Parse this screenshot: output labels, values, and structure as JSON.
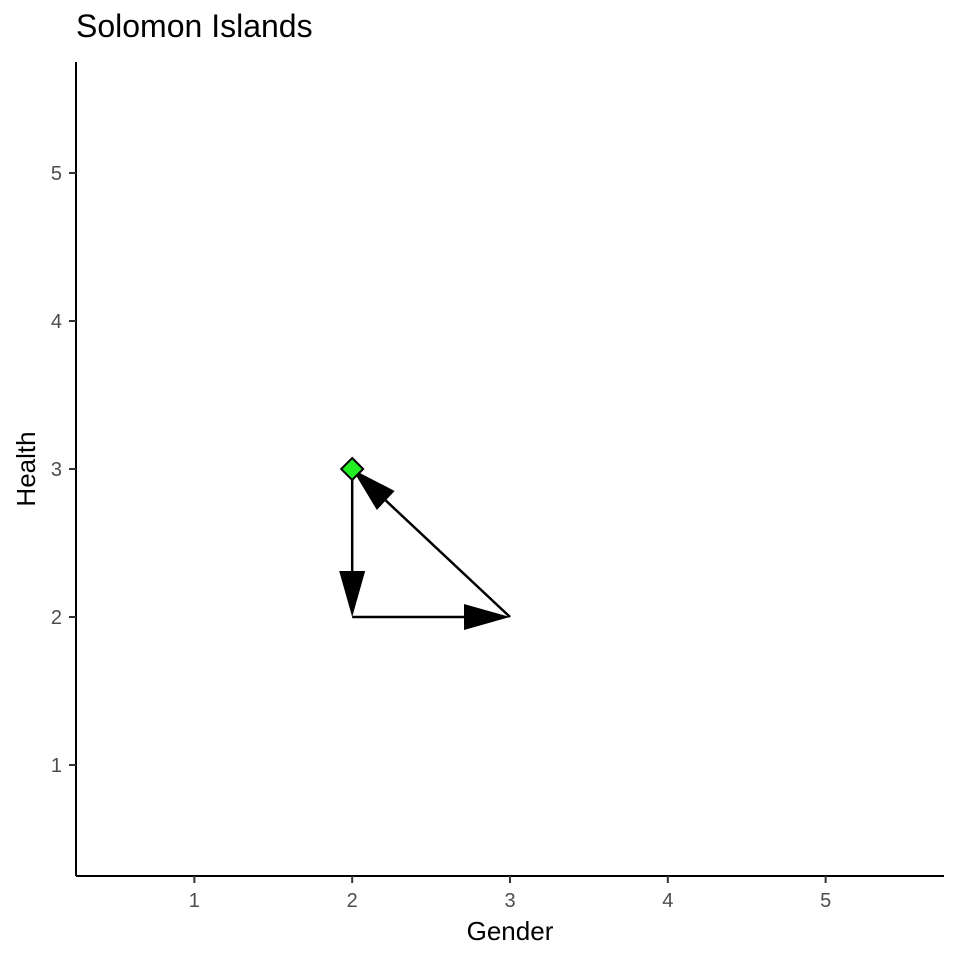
{
  "chart_data": {
    "type": "line",
    "title": "Solomon Islands",
    "xlabel": "Gender",
    "ylabel": "Health",
    "xlim": [
      0.25,
      5.75
    ],
    "ylim": [
      0.25,
      5.75
    ],
    "xticks": [
      "1",
      "2",
      "3",
      "4",
      "5"
    ],
    "yticks": [
      "1",
      "2",
      "3",
      "4",
      "5"
    ],
    "grid": false,
    "path": [
      {
        "x": 2,
        "y": 3
      },
      {
        "x": 2,
        "y": 2
      },
      {
        "x": 3,
        "y": 2
      },
      {
        "x": 2,
        "y": 3
      }
    ],
    "marker": {
      "x": 2,
      "y": 3,
      "shape": "diamond",
      "color": "#22ee22"
    },
    "line_color": "#000000"
  }
}
